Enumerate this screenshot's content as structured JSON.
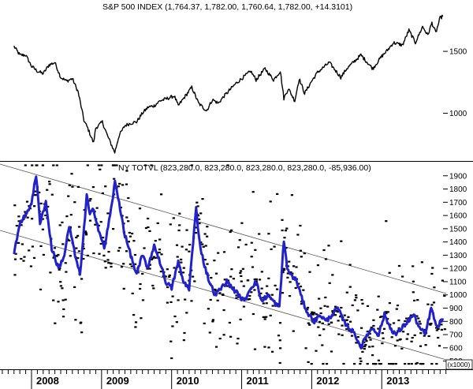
{
  "chart_data": [
    {
      "type": "line",
      "title": "S&P 500 INDEX (1,764.37, 1,782.00, 1,760.64, 1,782.00, +14.3101)",
      "y_ticks": [
        1000,
        1500
      ],
      "ylim": [
        640,
        1800
      ],
      "series": [
        {
          "points": [
            [
              "2007-10-01",
              1540
            ],
            [
              "2007-11-01",
              1470
            ],
            [
              "2007-12-01",
              1470
            ],
            [
              "2008-01-01",
              1380
            ],
            [
              "2008-02-01",
              1340
            ],
            [
              "2008-03-01",
              1320
            ],
            [
              "2008-04-01",
              1390
            ],
            [
              "2008-05-01",
              1410
            ],
            [
              "2008-06-01",
              1290
            ],
            [
              "2008-07-01",
              1260
            ],
            [
              "2008-08-01",
              1280
            ],
            [
              "2008-09-01",
              1170
            ],
            [
              "2008-10-01",
              940
            ],
            [
              "2008-10-20",
              880
            ],
            [
              "2008-11-20",
              760
            ],
            [
              "2008-12-01",
              880
            ],
            [
              "2009-01-05",
              930
            ],
            [
              "2009-02-01",
              820
            ],
            [
              "2009-03-09",
              683
            ],
            [
              "2009-04-01",
              820
            ],
            [
              "2009-05-01",
              900
            ],
            [
              "2009-06-01",
              920
            ],
            [
              "2009-07-01",
              930
            ],
            [
              "2009-08-01",
              1000
            ],
            [
              "2009-09-01",
              1050
            ],
            [
              "2009-10-01",
              1060
            ],
            [
              "2009-11-01",
              1100
            ],
            [
              "2009-12-01",
              1115
            ],
            [
              "2010-01-15",
              1140
            ],
            [
              "2010-02-05",
              1060
            ],
            [
              "2010-04-15",
              1210
            ],
            [
              "2010-05-20",
              1080
            ],
            [
              "2010-07-01",
              1020
            ],
            [
              "2010-08-01",
              1110
            ],
            [
              "2010-09-01",
              1080
            ],
            [
              "2010-10-01",
              1140
            ],
            [
              "2010-11-01",
              1190
            ],
            [
              "2010-12-01",
              1240
            ],
            [
              "2011-01-01",
              1280
            ],
            [
              "2011-02-18",
              1340
            ],
            [
              "2011-03-15",
              1270
            ],
            [
              "2011-05-01",
              1360
            ],
            [
              "2011-06-15",
              1270
            ],
            [
              "2011-07-20",
              1340
            ],
            [
              "2011-08-08",
              1120
            ],
            [
              "2011-09-01",
              1200
            ],
            [
              "2011-10-04",
              1100
            ],
            [
              "2011-10-27",
              1280
            ],
            [
              "2011-11-25",
              1160
            ],
            [
              "2012-01-01",
              1260
            ],
            [
              "2012-02-01",
              1330
            ],
            [
              "2012-04-01",
              1410
            ],
            [
              "2012-06-01",
              1290
            ],
            [
              "2012-07-01",
              1360
            ],
            [
              "2012-09-14",
              1470
            ],
            [
              "2012-11-15",
              1360
            ],
            [
              "2013-01-01",
              1460
            ],
            [
              "2013-02-01",
              1510
            ],
            [
              "2013-03-01",
              1570
            ],
            [
              "2013-04-18",
              1550
            ],
            [
              "2013-05-21",
              1670
            ],
            [
              "2013-06-24",
              1570
            ],
            [
              "2013-08-01",
              1700
            ],
            [
              "2013-08-28",
              1630
            ],
            [
              "2013-09-19",
              1730
            ],
            [
              "2013-10-09",
              1650
            ],
            [
              "2013-11-01",
              1770
            ],
            [
              "2013-11-15",
              1782
            ]
          ]
        }
      ]
    },
    {
      "type": "line",
      "title": "NY TOTVL (823,280.0, 823,280.0, 823,280.0, 823,280.0, -85,936.00)",
      "y_ticks": [
        500,
        600,
        700,
        800,
        900,
        1000,
        1100,
        1200,
        1300,
        1400,
        1500,
        1600,
        1700,
        1800,
        1900
      ],
      "ylim": [
        450,
        2000
      ],
      "units_label": "(x1000)",
      "series": [
        {
          "points": [
            [
              "2007-10-01",
              1300
            ],
            [
              "2007-11-01",
              1550
            ],
            [
              "2007-12-01",
              1600
            ],
            [
              "2008-01-01",
              1700
            ],
            [
              "2008-01-25",
              1900
            ],
            [
              "2008-02-15",
              1550
            ],
            [
              "2008-03-15",
              1700
            ],
            [
              "2008-04-15",
              1350
            ],
            [
              "2008-05-20",
              1200
            ],
            [
              "2008-06-20",
              1300
            ],
            [
              "2008-07-15",
              1520
            ],
            [
              "2008-08-15",
              1300
            ],
            [
              "2008-09-10",
              1150
            ],
            [
              "2008-10-01",
              1500
            ],
            [
              "2008-10-15",
              1750
            ],
            [
              "2008-11-01",
              1600
            ],
            [
              "2008-11-20",
              1650
            ],
            [
              "2008-12-15",
              1500
            ],
            [
              "2009-01-15",
              1350
            ],
            [
              "2009-02-15",
              1600
            ],
            [
              "2009-03-10",
              1850
            ],
            [
              "2009-04-01",
              1700
            ],
            [
              "2009-05-01",
              1450
            ],
            [
              "2009-06-01",
              1300
            ],
            [
              "2009-07-01",
              1150
            ],
            [
              "2009-08-01",
              1300
            ],
            [
              "2009-09-01",
              1200
            ],
            [
              "2009-10-01",
              1380
            ],
            [
              "2009-11-01",
              1250
            ],
            [
              "2009-12-01",
              1100
            ],
            [
              "2010-01-01",
              1050
            ],
            [
              "2010-02-05",
              1250
            ],
            [
              "2010-03-01",
              1100
            ],
            [
              "2010-04-01",
              1050
            ],
            [
              "2010-05-07",
              1650
            ],
            [
              "2010-05-25",
              1400
            ],
            [
              "2010-06-15",
              1250
            ],
            [
              "2010-07-15",
              1100
            ],
            [
              "2010-08-15",
              1000
            ],
            [
              "2010-09-15",
              1050
            ],
            [
              "2010-10-15",
              1100
            ],
            [
              "2010-11-15",
              1050
            ],
            [
              "2010-12-15",
              1000
            ],
            [
              "2011-01-15",
              950
            ],
            [
              "2011-02-15",
              1050
            ],
            [
              "2011-03-15",
              1100
            ],
            [
              "2011-04-15",
              950
            ],
            [
              "2011-05-15",
              1000
            ],
            [
              "2011-06-15",
              950
            ],
            [
              "2011-07-15",
              900
            ],
            [
              "2011-08-08",
              1420
            ],
            [
              "2011-08-25",
              1200
            ],
            [
              "2011-09-15",
              1150
            ],
            [
              "2011-10-15",
              1100
            ],
            [
              "2011-11-15",
              950
            ],
            [
              "2011-12-15",
              850
            ],
            [
              "2012-01-15",
              800
            ],
            [
              "2012-02-15",
              850
            ],
            [
              "2012-03-15",
              800
            ],
            [
              "2012-04-15",
              850
            ],
            [
              "2012-05-15",
              900
            ],
            [
              "2012-06-15",
              800
            ],
            [
              "2012-07-15",
              750
            ],
            [
              "2012-08-15",
              700
            ],
            [
              "2012-09-15",
              600
            ],
            [
              "2012-10-15",
              700
            ],
            [
              "2012-11-15",
              750
            ],
            [
              "2012-12-15",
              700
            ],
            [
              "2013-01-15",
              850
            ],
            [
              "2013-02-15",
              750
            ],
            [
              "2013-03-15",
              700
            ],
            [
              "2013-04-15",
              750
            ],
            [
              "2013-05-15",
              800
            ],
            [
              "2013-06-15",
              850
            ],
            [
              "2013-07-15",
              750
            ],
            [
              "2013-08-15",
              700
            ],
            [
              "2013-09-15",
              900
            ],
            [
              "2013-10-15",
              750
            ],
            [
              "2013-11-15",
              823
            ]
          ]
        }
      ]
    }
  ],
  "x_axis": {
    "year_labels": [
      "2008",
      "2009",
      "2010",
      "2011",
      "2012",
      "2013"
    ]
  },
  "colors": {
    "price_line": "#000000",
    "volume_line": "#2222cc",
    "volume_dots": "#000000",
    "channel_lines": "#555555"
  }
}
